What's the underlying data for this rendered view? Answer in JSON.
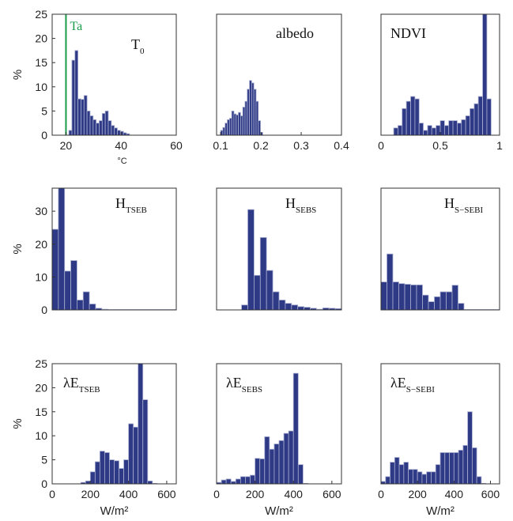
{
  "chart_data": [
    {
      "type": "bar",
      "id": "T0",
      "title": "T",
      "title_sub": "0",
      "xlim": [
        15,
        60
      ],
      "ylim": [
        0,
        25
      ],
      "xticks": [
        "20",
        "40",
        "60"
      ],
      "xtick_values": [
        20,
        40,
        60
      ],
      "yticks": [
        "0",
        "5",
        "10",
        "15",
        "20",
        "25"
      ],
      "ytick_values": [
        0,
        5,
        10,
        15,
        20,
        25
      ],
      "ylabel": "%",
      "xlabel": "°C",
      "xlabel_small": true,
      "bin_width": 1.1,
      "x": [
        21.6,
        22.7,
        23.8,
        24.9,
        26.0,
        27.1,
        28.2,
        29.3,
        30.4,
        31.5,
        32.6,
        33.7,
        34.8,
        35.9,
        37.0,
        38.1,
        39.2,
        40.3,
        41.4,
        42.5
      ],
      "values": [
        1.0,
        15.5,
        17.5,
        7.5,
        7.4,
        8.2,
        5.0,
        4.0,
        3.2,
        2.5,
        3.0,
        4.5,
        5.0,
        3.0,
        2.0,
        1.5,
        1.0,
        0.8,
        0.5,
        0.3
      ],
      "vline": {
        "x": 20,
        "label": "Ta",
        "color": "#1a9a4a"
      }
    },
    {
      "type": "bar",
      "id": "albedo",
      "title": "albedo",
      "title_sub": "",
      "xlim": [
        0.09,
        0.4
      ],
      "ylim": [
        0,
        25
      ],
      "xticks": [
        "0.1",
        "0.2",
        "0.3",
        "0.4"
      ],
      "xtick_values": [
        0.1,
        0.2,
        0.3,
        0.4
      ],
      "yticks": [],
      "ytick_values": [],
      "ylabel": "",
      "xlabel": "",
      "bin_width": 0.0055,
      "x": [
        0.1028,
        0.1083,
        0.1138,
        0.1193,
        0.1248,
        0.1303,
        0.1358,
        0.1413,
        0.1468,
        0.1523,
        0.1578,
        0.1633,
        0.1688,
        0.1743,
        0.1798,
        0.1853,
        0.1908,
        0.1963,
        0.2018
      ],
      "values": [
        1.0,
        1.6,
        2.5,
        3.2,
        3.5,
        5.0,
        4.4,
        4.2,
        4.7,
        4.0,
        5.8,
        7.0,
        9.5,
        11.3,
        10.8,
        9.5,
        7.0,
        3.0,
        0.6
      ]
    },
    {
      "type": "bar",
      "id": "NDVI",
      "title": "NDVI",
      "title_sub": "",
      "xlim": [
        0,
        1
      ],
      "ylim": [
        0,
        25
      ],
      "xticks": [
        "0",
        "0.5",
        "1"
      ],
      "xtick_values": [
        0,
        0.5,
        1
      ],
      "yticks": [],
      "ytick_values": [],
      "ylabel": "",
      "xlabel": "",
      "bin_width": 0.0357,
      "x": [
        0.125,
        0.161,
        0.196,
        0.232,
        0.268,
        0.304,
        0.339,
        0.375,
        0.411,
        0.446,
        0.482,
        0.518,
        0.554,
        0.589,
        0.625,
        0.661,
        0.696,
        0.732,
        0.768,
        0.804,
        0.839,
        0.875,
        0.911
      ],
      "values": [
        1.5,
        2.0,
        5.5,
        7.0,
        8.0,
        7.5,
        2.5,
        1.0,
        2.0,
        1.5,
        2.0,
        3.0,
        2.0,
        3.0,
        3.0,
        2.5,
        3.2,
        4.0,
        5.5,
        6.5,
        8.0,
        25.0,
        7.5
      ]
    },
    {
      "type": "bar",
      "id": "H_TSEB",
      "title": "H",
      "title_sub": "TSEB",
      "xlim": [
        0,
        10
      ],
      "ylim": [
        0,
        37
      ],
      "xticks": [],
      "xtick_values": [],
      "yticks": [
        "0",
        "10",
        "20",
        "30"
      ],
      "ytick_values": [
        0,
        10,
        20,
        30
      ],
      "ylabel": "%",
      "xlabel": "",
      "bin_width": 0.5,
      "x": [
        0.25,
        0.75,
        1.25,
        1.75,
        2.25,
        2.75,
        3.25,
        3.75,
        4.25,
        4.75,
        5.25,
        5.75,
        6.25,
        6.75,
        7.25,
        7.75,
        8.25,
        8.75,
        9.25,
        9.75
      ],
      "values": [
        24.5,
        37.0,
        11.8,
        15.0,
        3.0,
        5.5,
        1.8,
        0.5,
        0.2,
        0.1,
        0.1,
        0.1,
        0.1,
        0.1,
        0.1,
        0.1,
        0.1,
        0.1,
        0.1,
        0.1
      ]
    },
    {
      "type": "bar",
      "id": "H_SEBS",
      "title": "H",
      "title_sub": "SEBS",
      "xlim": [
        0,
        10
      ],
      "ylim": [
        0,
        37
      ],
      "xticks": [],
      "xtick_values": [],
      "yticks": [],
      "ytick_values": [],
      "ylabel": "",
      "xlabel": "",
      "bin_width": 0.5,
      "x": [
        0.25,
        0.75,
        1.25,
        1.75,
        2.25,
        2.75,
        3.25,
        3.75,
        4.25,
        4.75,
        5.25,
        5.75,
        6.25,
        6.75,
        7.25,
        7.75,
        8.25,
        8.75,
        9.25,
        9.75
      ],
      "values": [
        0,
        0,
        0,
        0,
        1.5,
        30.5,
        10.5,
        22.0,
        12.0,
        5.5,
        3.0,
        2.0,
        1.5,
        1.0,
        0.8,
        0.5,
        0.2,
        0.6,
        0.5,
        0.4
      ]
    },
    {
      "type": "bar",
      "id": "H_S-SEBI",
      "title": "H",
      "title_sub": "S−SEBI",
      "xlim": [
        0,
        10
      ],
      "ylim": [
        0,
        37
      ],
      "xticks": [],
      "xtick_values": [],
      "yticks": [],
      "ytick_values": [],
      "ylabel": "",
      "xlabel": "",
      "bin_width": 0.5,
      "x": [
        0.25,
        0.75,
        1.25,
        1.75,
        2.25,
        2.75,
        3.25,
        3.75,
        4.25,
        4.75,
        5.25,
        5.75,
        6.25,
        6.75,
        7.25,
        7.75,
        8.25,
        8.75,
        9.25,
        9.75
      ],
      "values": [
        8.5,
        17.0,
        8.5,
        8.0,
        7.8,
        7.6,
        7.6,
        4.5,
        2.5,
        4.0,
        5.5,
        5.5,
        7.5,
        2.0,
        0.1,
        0.1,
        0.1,
        0.1,
        0.1,
        0.1
      ]
    },
    {
      "type": "bar",
      "id": "LE_TSEB",
      "title": "λE",
      "title_sub": "TSEB",
      "xlim": [
        0,
        650
      ],
      "ylim": [
        0,
        25
      ],
      "xticks": [
        "0",
        "200",
        "400",
        "600"
      ],
      "xtick_values": [
        0,
        200,
        400,
        600
      ],
      "yticks": [
        "0",
        "5",
        "10",
        "15",
        "20",
        "25"
      ],
      "ytick_values": [
        0,
        5,
        10,
        15,
        20,
        25
      ],
      "ylabel": "%",
      "xlabel": "W/m²",
      "bin_width": 25,
      "x": [
        162.5,
        187.5,
        212.5,
        237.5,
        262.5,
        287.5,
        312.5,
        337.5,
        362.5,
        387.5,
        412.5,
        437.5,
        462.5,
        487.5,
        512.5,
        537.5
      ],
      "values": [
        0.3,
        0.6,
        2.5,
        4.6,
        6.8,
        6.5,
        5.0,
        4.8,
        3.2,
        5.0,
        12.5,
        11.8,
        25.0,
        17.5,
        0.6,
        0.1
      ]
    },
    {
      "type": "bar",
      "id": "LE_SEBS",
      "title": "λE",
      "title_sub": "SEBS",
      "xlim": [
        0,
        650
      ],
      "ylim": [
        0,
        25
      ],
      "xticks": [
        "0",
        "200",
        "400",
        "600"
      ],
      "xtick_values": [
        0,
        200,
        400,
        600
      ],
      "yticks": [],
      "ytick_values": [],
      "ylabel": "",
      "xlabel": "W/m²",
      "bin_width": 25,
      "x": [
        12.5,
        37.5,
        62.5,
        87.5,
        112.5,
        137.5,
        162.5,
        187.5,
        212.5,
        237.5,
        262.5,
        287.5,
        312.5,
        337.5,
        362.5,
        387.5,
        412.5,
        437.5,
        462.5
      ],
      "values": [
        0.3,
        0.8,
        1.0,
        0.5,
        1.0,
        1.5,
        1.5,
        1.8,
        5.3,
        5.2,
        9.8,
        7.2,
        8.3,
        9.0,
        10.5,
        11.0,
        23.0,
        4.0,
        0.1
      ]
    },
    {
      "type": "bar",
      "id": "LE_S-SEBI",
      "title": "λE",
      "title_sub": "S−SEBI",
      "xlim": [
        0,
        650
      ],
      "ylim": [
        0,
        25
      ],
      "xticks": [
        "0",
        "200",
        "400",
        "600"
      ],
      "xtick_values": [
        0,
        200,
        400,
        600
      ],
      "yticks": [],
      "ytick_values": [],
      "ylabel": "",
      "xlabel": "W/m²",
      "bin_width": 25,
      "x": [
        12.5,
        37.5,
        62.5,
        87.5,
        112.5,
        137.5,
        162.5,
        187.5,
        212.5,
        237.5,
        262.5,
        287.5,
        312.5,
        337.5,
        362.5,
        387.5,
        412.5,
        437.5,
        462.5,
        487.5,
        512.5,
        537.5,
        562.5
      ],
      "values": [
        0.5,
        1.5,
        4.5,
        5.5,
        4.0,
        4.5,
        3.0,
        3.0,
        2.5,
        2.0,
        2.5,
        2.5,
        4.0,
        6.5,
        6.5,
        6.5,
        6.5,
        7.0,
        8.0,
        15.0,
        7.5,
        1.5,
        0.1
      ]
    }
  ]
}
